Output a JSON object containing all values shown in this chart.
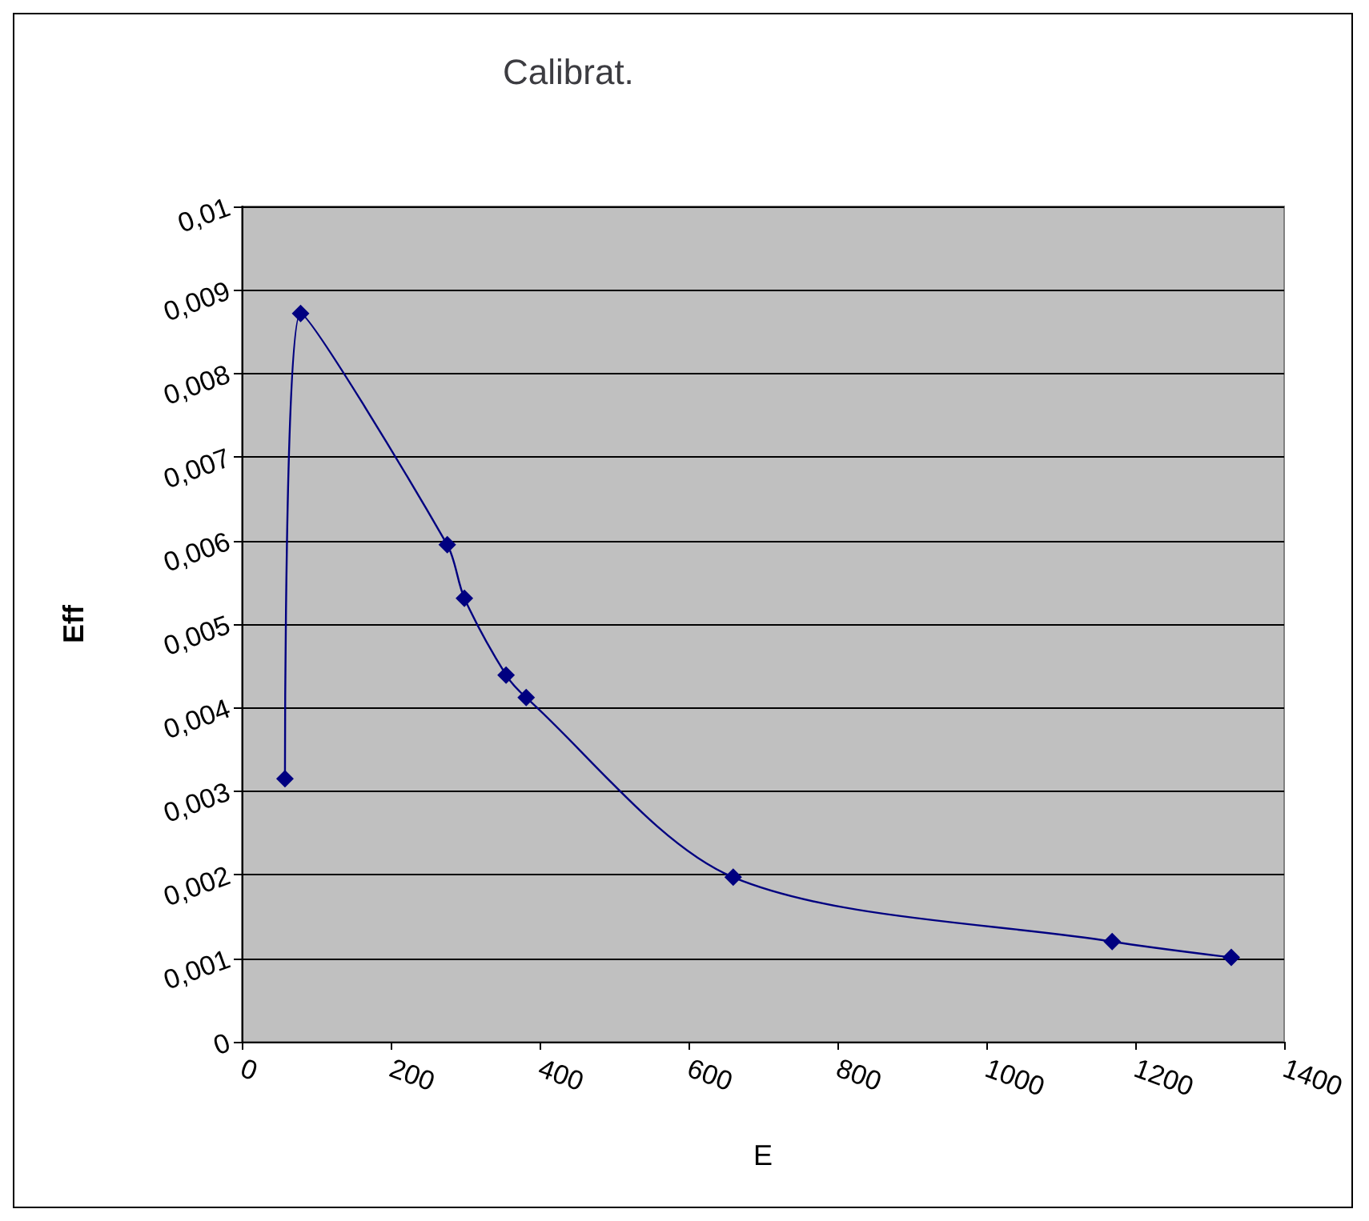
{
  "chart_data": {
    "type": "line",
    "title": "Calibrat.",
    "xlabel": "E",
    "ylabel": "Eff",
    "x": [
      58,
      79,
      276,
      299,
      355,
      382,
      660,
      1169,
      1329
    ],
    "series": [
      {
        "color": "#000080",
        "values": [
          0.00315,
          0.00872,
          0.00595,
          0.00531,
          0.00439,
          0.00412,
          0.00197,
          0.0012,
          0.00101
        ]
      }
    ],
    "xlim": [
      0,
      1400
    ],
    "xticks": [
      0,
      200,
      400,
      600,
      800,
      1000,
      1200,
      1400
    ],
    "ylim": [
      0,
      0.01
    ],
    "yticks": [
      0,
      {
        "value": 0.001,
        "label": "0,001"
      },
      {
        "value": 0.002,
        "label": "0,002"
      },
      {
        "value": 0.003,
        "label": "0,003"
      },
      {
        "value": 0.004,
        "label": "0,004"
      },
      {
        "value": 0.005,
        "label": "0,005"
      },
      {
        "value": 0.006,
        "label": "0,006"
      },
      {
        "value": 0.007,
        "label": "0,007"
      },
      {
        "value": 0.008,
        "label": "0,008"
      },
      {
        "value": 0.009,
        "label": "0,009"
      },
      {
        "value": 0.01,
        "label": "0,01"
      }
    ],
    "grid": "y",
    "marker": "diamond"
  }
}
